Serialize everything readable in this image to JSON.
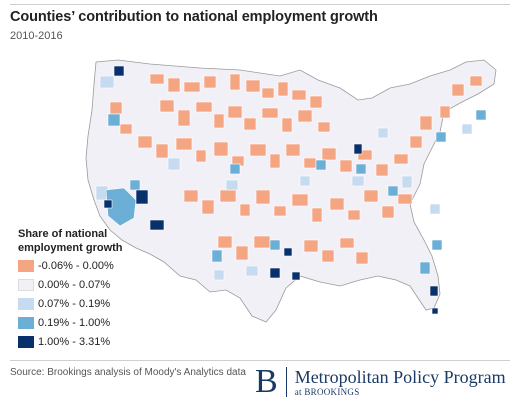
{
  "header": {
    "title": "Counties’ contribution to national employment growth",
    "subtitle": "2010-2016"
  },
  "legend": {
    "title": "Share of national employment growth",
    "items": [
      {
        "label": "-0.06% - 0.00%",
        "color": "#f4a582"
      },
      {
        "label": "0.00% - 0.07%",
        "color": "#f2f0f7"
      },
      {
        "label": "0.07% - 0.19%",
        "color": "#c6dbef"
      },
      {
        "label": "0.19% - 1.00%",
        "color": "#6baed6"
      },
      {
        "label": "1.00% - 3.31%",
        "color": "#08306b"
      }
    ]
  },
  "map": {
    "region": "Contiguous United States, county level",
    "background_color": "#f2f0f7",
    "border_color": "#ffffff"
  },
  "footer": {
    "source": "Source: Brookings analysis of Moody's Analytics data",
    "brand_letter": "B",
    "brand_name": "Metropolitan Policy Program",
    "brand_sub": "at BROOKINGS"
  }
}
